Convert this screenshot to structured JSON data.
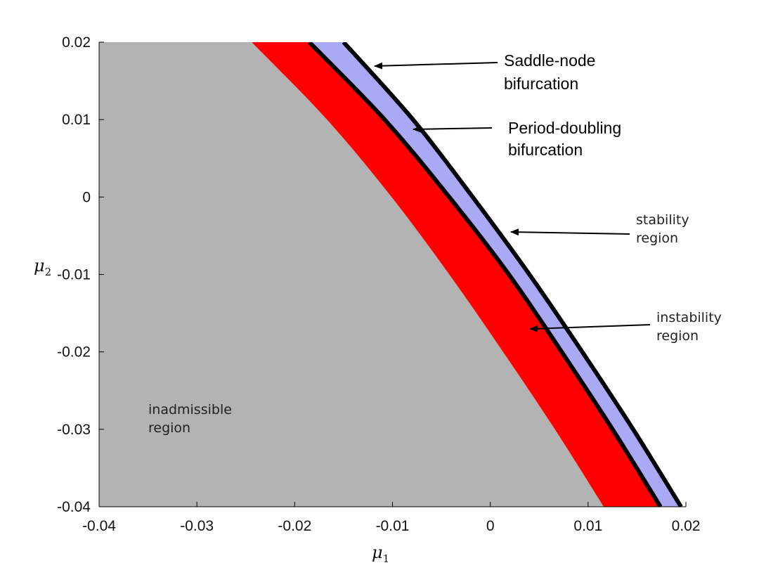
{
  "chart_data": {
    "type": "area",
    "title": "",
    "xlabel": "μ",
    "xlabel_sub": "1",
    "ylabel": "μ",
    "ylabel_sub": "2",
    "xlim": [
      -0.04,
      0.02
    ],
    "ylim": [
      -0.04,
      0.02
    ],
    "x_ticks": [
      -0.04,
      -0.03,
      -0.02,
      -0.01,
      0,
      0.01,
      0.02
    ],
    "x_tick_labels": [
      "-0.04",
      "-0.03",
      "-0.02",
      "-0.01",
      "0",
      "0.01",
      "0.02"
    ],
    "y_ticks": [
      0.02,
      0.01,
      0,
      -0.01,
      -0.02,
      -0.03,
      -0.04
    ],
    "y_tick_labels": [
      "0.02",
      "0.01",
      "0",
      "-0.01",
      "-0.02",
      "-0.03",
      "-0.04"
    ],
    "grid": false,
    "curves": {
      "gray_boundary": {
        "y": [
          0.02,
          0.01,
          0,
          -0.01,
          -0.02,
          -0.03,
          -0.04
        ],
        "x": [
          -0.0244,
          -0.0167,
          -0.0101,
          -0.0042,
          0.0013,
          0.0066,
          0.0116
        ]
      },
      "period_doubling": {
        "y": [
          0.02,
          0.01,
          0,
          -0.01,
          -0.02,
          -0.03,
          -0.04
        ],
        "x": [
          -0.0185,
          -0.0108,
          -0.0042,
          0.0019,
          0.0073,
          0.0125,
          0.0174
        ]
      },
      "saddle_node": {
        "y": [
          0.02,
          0.01,
          0,
          -0.01,
          -0.02,
          -0.03,
          -0.04
        ],
        "x": [
          -0.015,
          -0.0079,
          -0.0018,
          0.004,
          0.0094,
          0.0146,
          0.0195
        ]
      }
    },
    "regions": [
      {
        "name": "inadmissible region",
        "color": "#b3b3b3",
        "between": [
          "left_edge",
          "gray_boundary"
        ]
      },
      {
        "name": "instability region",
        "color": "#ff0000",
        "between": [
          "gray_boundary",
          "period_doubling"
        ]
      },
      {
        "name": "stability region",
        "color": "#a9a9f5",
        "between": [
          "period_doubling",
          "saddle_node"
        ]
      }
    ],
    "annotations": {
      "saddle_node_line1": "Saddle-node",
      "saddle_node_line2": "bifurcation",
      "period_doubling_line1": "Period-doubling",
      "period_doubling_line2": "bifurcation",
      "stability_line1": "stability",
      "stability_line2": "region",
      "instability_line1": "instability",
      "instability_line2": "region",
      "inadmissible_line1": "inadmissible",
      "inadmissible_line2": "region"
    },
    "colors": {
      "gray": "#b3b3b3",
      "red": "#ff0000",
      "blue": "#a9a9f5",
      "line": "#000000"
    }
  }
}
